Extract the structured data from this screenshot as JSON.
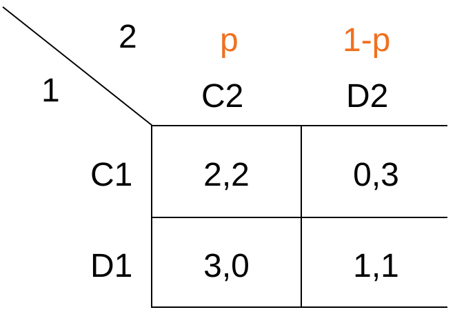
{
  "players": {
    "row_player": "1",
    "col_player": "2"
  },
  "column_probs": {
    "left": "p",
    "right": "1-p"
  },
  "column_strategies": [
    "C2",
    "D2"
  ],
  "row_strategies": [
    "C1",
    "D1"
  ],
  "payoffs": [
    [
      "2,2",
      "0,3"
    ],
    [
      "3,0",
      "1,1"
    ]
  ],
  "colors": {
    "probability_label": "#f07020",
    "text": "#000000",
    "lines": "#000000"
  }
}
